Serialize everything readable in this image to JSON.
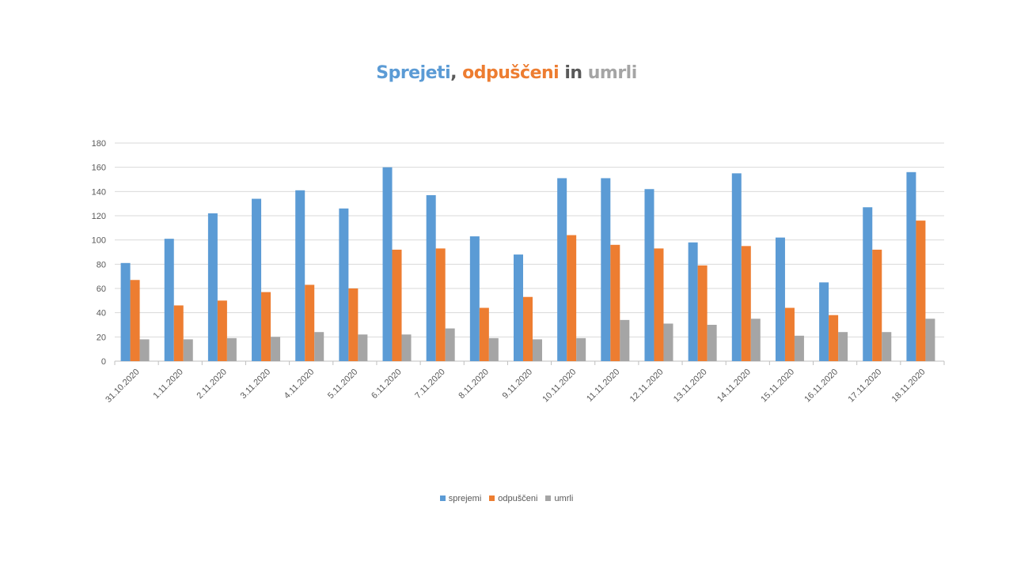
{
  "chart_data": {
    "type": "bar",
    "title_parts": [
      {
        "text": "Sprejeti",
        "color": "#5B9BD5"
      },
      {
        "text": ", ",
        "color": "#595959"
      },
      {
        "text": "odpuščeni",
        "color": "#ED7D31"
      },
      {
        "text": " in ",
        "color": "#595959"
      },
      {
        "text": "umrli",
        "color": "#A5A5A5"
      }
    ],
    "categories": [
      "31.10.2020",
      "1.11.2020",
      "2.11.2020",
      "3.11.2020",
      "4.11.2020",
      "5.11.2020",
      "6.11.2020",
      "7.11.2020",
      "8.11.2020",
      "9.11.2020",
      "10.11.2020",
      "11.11.2020",
      "12.11.2020",
      "13.11.2020",
      "14.11.2020",
      "15.11.2020",
      "16.11.2020",
      "17.11.2020",
      "18.11.2020"
    ],
    "series": [
      {
        "name": "sprejemi",
        "color": "#5B9BD5",
        "values": [
          81,
          101,
          122,
          134,
          141,
          126,
          160,
          137,
          103,
          88,
          151,
          151,
          142,
          98,
          155,
          102,
          65,
          127,
          156
        ]
      },
      {
        "name": "odpuščeni",
        "color": "#ED7D31",
        "values": [
          67,
          46,
          50,
          57,
          63,
          60,
          92,
          93,
          44,
          53,
          104,
          96,
          93,
          79,
          95,
          44,
          38,
          92,
          116
        ]
      },
      {
        "name": "umrli",
        "color": "#A5A5A5",
        "values": [
          18,
          18,
          19,
          20,
          24,
          22,
          22,
          27,
          19,
          18,
          19,
          34,
          31,
          30,
          35,
          21,
          24,
          24,
          35
        ]
      }
    ],
    "ylim": [
      0,
      180
    ],
    "yticks": [
      0,
      20,
      40,
      60,
      80,
      100,
      120,
      140,
      160,
      180
    ],
    "grid": true,
    "legend": "bottom"
  }
}
